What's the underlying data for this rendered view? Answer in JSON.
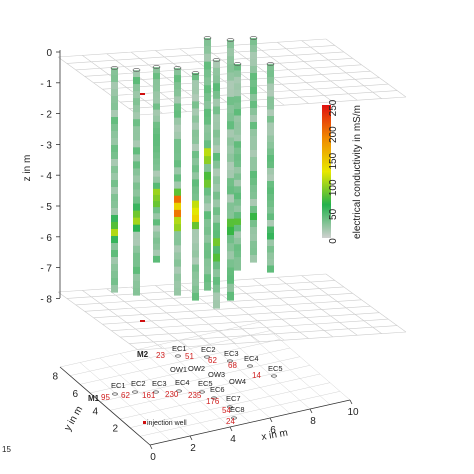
{
  "chart_data": {
    "type": "3d-borehole-profiles",
    "z_axis": {
      "label": "z in m",
      "ticks": [
        "0",
        "- 1",
        "- 2",
        "- 3",
        "- 4",
        "- 5",
        "- 6",
        "- 7",
        "- 8"
      ],
      "range": [
        -8,
        0
      ]
    },
    "x_axis": {
      "label": "x in m",
      "ticks": [
        "0",
        "2",
        "4",
        "6",
        "8",
        "10"
      ],
      "range": [
        0,
        10
      ]
    },
    "y_axis": {
      "label": "y in m",
      "ticks": [
        "2",
        "4",
        "6",
        "8"
      ],
      "range": [
        0,
        9
      ]
    },
    "colorbar": {
      "label": "electrical conductivity in mS/m",
      "ticks": [
        "0",
        "50",
        "100",
        "150",
        "200",
        "250"
      ],
      "range": [
        0,
        250
      ],
      "colors": [
        "#d0d0d0",
        "#22b14c",
        "#e8e800",
        "#f08a00",
        "#e01010"
      ]
    },
    "corner_label": "15",
    "wells": [
      {
        "name": "EC1",
        "x": 1.5,
        "y": 4.2,
        "value": "95"
      },
      {
        "name": "EC2",
        "x": 2.6,
        "y": 4.2,
        "value": "62"
      },
      {
        "name": "EC3",
        "x": 3.6,
        "y": 4.1,
        "value": "161"
      },
      {
        "name": "EC4",
        "x": 4.7,
        "y": 3.9,
        "value": "230"
      },
      {
        "name": "EC5",
        "x": 6.0,
        "y": 3.6,
        "value": "235"
      },
      {
        "name": "EC6",
        "x": 7.0,
        "y": 3.2,
        "value": "176"
      },
      {
        "name": "EC7",
        "x": 8.0,
        "y": 2.5,
        "value": "54"
      },
      {
        "name": "EC8",
        "x": 8.8,
        "y": 1.9,
        "value": "24"
      }
    ],
    "wells_row2": [
      {
        "name": "EC1",
        "x": 1.6,
        "y": 8.4,
        "value": "23"
      },
      {
        "name": "EC2",
        "x": 2.8,
        "y": 8.1,
        "value": "51"
      },
      {
        "name": "EC3",
        "x": 4.0,
        "y": 7.7,
        "value": "62"
      },
      {
        "name": "EC4",
        "x": 5.2,
        "y": 7.4,
        "value": "68"
      },
      {
        "name": "EC5",
        "x": 6.8,
        "y": 7.1,
        "value": "14"
      }
    ],
    "observation_wells": [
      "OW1",
      "OW2",
      "OW3",
      "OW4"
    ],
    "row_labels": [
      "M1",
      "M2"
    ],
    "injection_well_label": "injection well"
  }
}
